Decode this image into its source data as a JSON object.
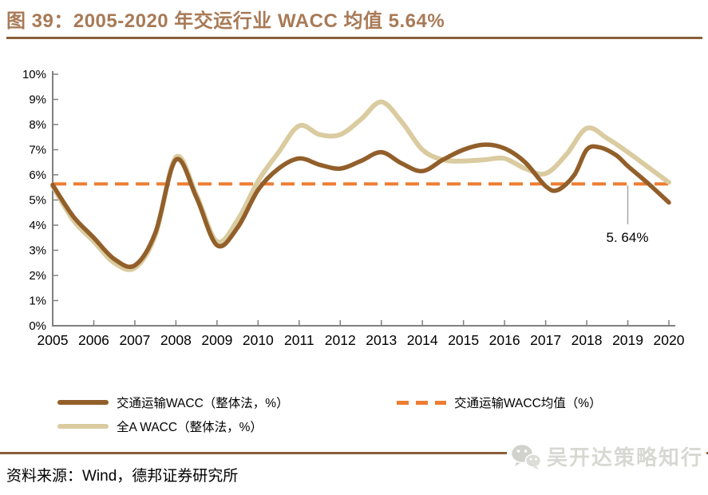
{
  "title": {
    "text": "图 39：2005-2020 年交运行业 WACC 均值 5.64%"
  },
  "source": {
    "text": "资料来源：Wind，德邦证券研究所"
  },
  "watermark": {
    "text": "吴开达策略知行",
    "icon": "wechat-icon"
  },
  "annotation": {
    "label": "5. 64%"
  },
  "colors": {
    "title_brown": "#A87A56",
    "rule_brown": "#8A5F38",
    "transport_wacc": "#925F2A",
    "all_a_wacc": "#DACBA0",
    "mean_line": "#ED7D31",
    "axis_gray": "#808080",
    "leader_gray": "#A6A6A6",
    "watermark_gray": "#D8D8D3",
    "tick_label": "#000000"
  },
  "legend": {
    "items": [
      {
        "label": "交通运输WACC（整体法，%）",
        "swatch_color_key": "transport_wacc",
        "swatch_style": "solid"
      },
      {
        "label": "全A WACC（整体法，%）",
        "swatch_color_key": "all_a_wacc",
        "swatch_style": "solid"
      },
      {
        "label": "交通运输WACC均值（%）",
        "swatch_color_key": "mean_line",
        "swatch_style": "dashed"
      }
    ]
  },
  "chart_data": {
    "type": "line",
    "title": "2005-2020 年交运行业 WACC 均值 5.64%",
    "categories": [
      2005,
      2006,
      2007,
      2008,
      2009,
      2010,
      2011,
      2012,
      2013,
      2014,
      2015,
      2016,
      2017,
      2018,
      2019,
      2020
    ],
    "ylim": [
      0,
      10
    ],
    "ytick_labels": [
      "0%",
      "1%",
      "2%",
      "3%",
      "4%",
      "5%",
      "6%",
      "7%",
      "8%",
      "9%",
      "10%"
    ],
    "grid": false,
    "legend_position": "bottom",
    "series": [
      {
        "name": "交通运输WACC（整体法，%）",
        "color_key": "transport_wacc",
        "style": "solid",
        "z": 3,
        "values": [
          5.6,
          3.5,
          2.4,
          6.6,
          3.2,
          5.4,
          6.7,
          6.3,
          6.9,
          6.2,
          7.0,
          7.0,
          5.6,
          7.0,
          6.4,
          4.9
        ],
        "points": [
          [
            2005,
            5.6
          ],
          [
            2005.5,
            4.35
          ],
          [
            2006,
            3.5
          ],
          [
            2006.5,
            2.65
          ],
          [
            2007,
            2.4
          ],
          [
            2007.5,
            3.7
          ],
          [
            2008,
            6.6
          ],
          [
            2008.5,
            5.1
          ],
          [
            2009,
            3.2
          ],
          [
            2009.5,
            3.9
          ],
          [
            2010,
            5.4
          ],
          [
            2010.5,
            6.25
          ],
          [
            2011,
            6.65
          ],
          [
            2011.5,
            6.4
          ],
          [
            2012,
            6.25
          ],
          [
            2012.5,
            6.55
          ],
          [
            2013,
            6.9
          ],
          [
            2013.5,
            6.45
          ],
          [
            2014,
            6.15
          ],
          [
            2014.5,
            6.6
          ],
          [
            2015,
            7.0
          ],
          [
            2015.5,
            7.2
          ],
          [
            2016,
            7.05
          ],
          [
            2016.5,
            6.5
          ],
          [
            2017,
            5.55
          ],
          [
            2017.3,
            5.4
          ],
          [
            2017.7,
            6.0
          ],
          [
            2018,
            7.0
          ],
          [
            2018.3,
            7.1
          ],
          [
            2018.7,
            6.8
          ],
          [
            2019,
            6.35
          ],
          [
            2019.5,
            5.65
          ],
          [
            2020,
            4.9
          ]
        ]
      },
      {
        "name": "全A WACC（整体法，%）",
        "color_key": "all_a_wacc",
        "style": "solid",
        "z": 2,
        "values": [
          5.6,
          3.4,
          2.3,
          6.7,
          3.4,
          5.8,
          8.0,
          7.6,
          8.9,
          7.0,
          6.6,
          6.7,
          6.1,
          7.9,
          6.9,
          5.7
        ],
        "points": [
          [
            2005,
            5.55
          ],
          [
            2005.5,
            4.2
          ],
          [
            2006,
            3.35
          ],
          [
            2006.5,
            2.5
          ],
          [
            2007,
            2.3
          ],
          [
            2007.5,
            3.6
          ],
          [
            2008,
            6.7
          ],
          [
            2008.5,
            5.2
          ],
          [
            2009,
            3.35
          ],
          [
            2009.5,
            4.2
          ],
          [
            2010,
            5.75
          ],
          [
            2010.5,
            6.9
          ],
          [
            2011,
            7.95
          ],
          [
            2011.5,
            7.6
          ],
          [
            2012,
            7.6
          ],
          [
            2012.5,
            8.2
          ],
          [
            2013,
            8.9
          ],
          [
            2013.5,
            8.1
          ],
          [
            2014,
            7.0
          ],
          [
            2014.5,
            6.6
          ],
          [
            2015,
            6.55
          ],
          [
            2015.5,
            6.6
          ],
          [
            2016,
            6.65
          ],
          [
            2016.5,
            6.25
          ],
          [
            2017,
            6.05
          ],
          [
            2017.5,
            6.8
          ],
          [
            2018,
            7.85
          ],
          [
            2018.5,
            7.45
          ],
          [
            2019,
            6.9
          ],
          [
            2019.5,
            6.3
          ],
          [
            2020,
            5.7
          ]
        ]
      },
      {
        "name": "交通运输WACC均值（%）",
        "color_key": "mean_line",
        "style": "dashed",
        "z": 1,
        "constant": 5.64
      }
    ]
  }
}
